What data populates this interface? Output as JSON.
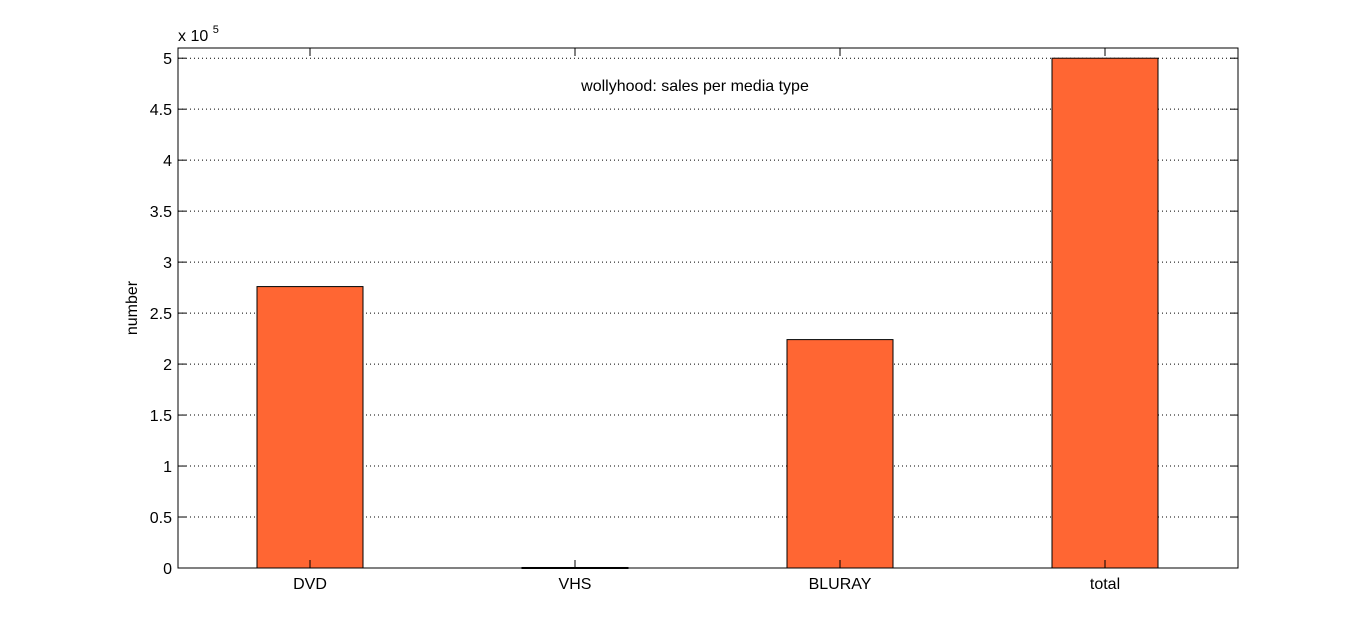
{
  "chart_data": {
    "type": "bar",
    "title": "wollyhood: sales per media type",
    "xlabel": "",
    "ylabel": "number",
    "y_exponent_base": "x 10",
    "y_exponent_power": "5",
    "y_multiplier": 100000,
    "categories": [
      "DVD",
      "VHS",
      "BLURAY",
      "total"
    ],
    "values": [
      276000,
      500,
      224000,
      500000
    ],
    "ylim": [
      0,
      510000
    ],
    "yticks": [
      0,
      50000,
      100000,
      150000,
      200000,
      250000,
      300000,
      350000,
      400000,
      450000,
      500000
    ],
    "ytick_labels": [
      "0",
      "0.5",
      "1",
      "1.5",
      "2",
      "2.5",
      "3",
      "3.5",
      "4",
      "4.5",
      "5"
    ],
    "grid": true,
    "bar_color": "#ff6633"
  }
}
